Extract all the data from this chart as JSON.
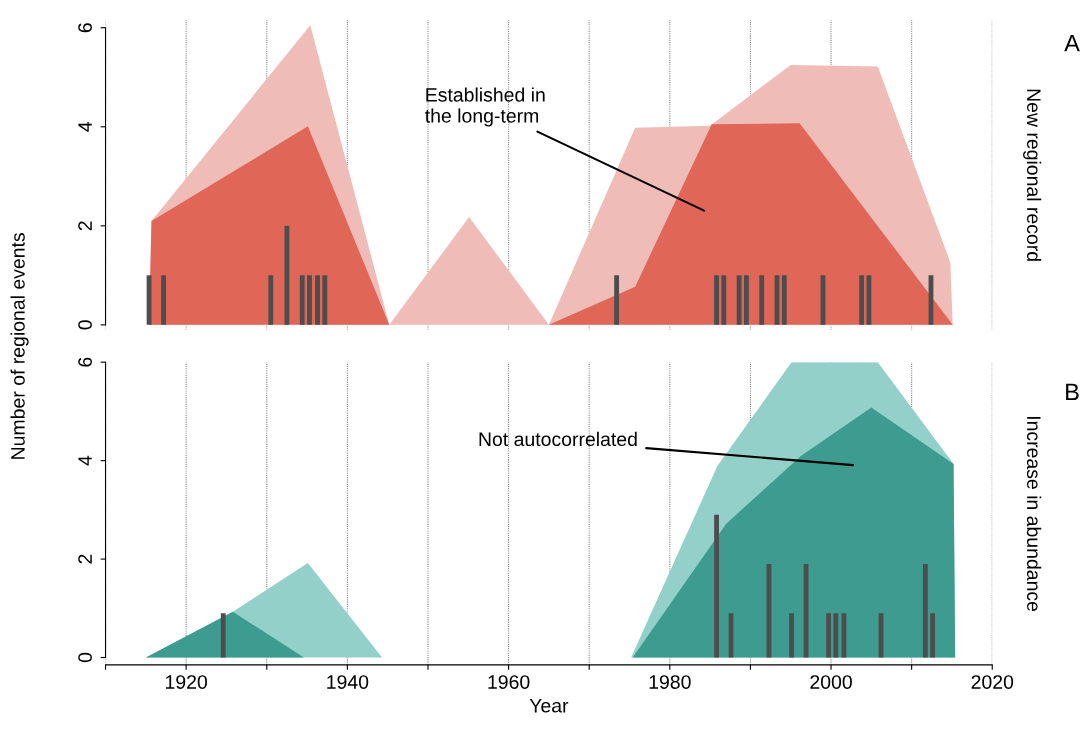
{
  "chart_data": [
    {
      "type": "area",
      "y2label": "New regional record",
      "ylabel": "Number of regional events",
      "xlim": [
        1910,
        2020
      ],
      "ylim": [
        -0.1,
        6.15
      ],
      "xticks": [
        {
          "value": 1910,
          "label": null
        },
        1920,
        {
          "value": 1930,
          "label": null
        },
        1940,
        {
          "value": 1950,
          "label": null
        },
        1960,
        {
          "value": 1970,
          "label": null
        },
        1980,
        {
          "value": 1990,
          "label": null
        },
        2000,
        {
          "value": 2010,
          "label": null
        },
        2020
      ],
      "yticks": [
        0,
        2,
        4,
        6
      ],
      "grid": "x",
      "tick_labels": "y",
      "series": [
        {
          "color": "#f0bcb8",
          "x": [
            1915.4,
            1915.7,
            1935.4,
            1945.2,
            1955.1,
            1965.0,
            1975.7,
            1985.0,
            1995.0,
            2005.8,
            2014.8,
            2015.1
          ],
          "values": [
            0,
            2.1,
            6.05,
            0,
            2.18,
            0,
            3.98,
            4.02,
            5.25,
            5.22,
            1.26,
            0
          ]
        },
        {
          "color": "#e06758",
          "x": [
            1915.4,
            1915.7,
            1935.1,
            1945.2,
            1965.0,
            1975.7,
            1985.2,
            1996.1,
            2015.1
          ],
          "values": [
            0,
            2.1,
            4.01,
            0,
            0,
            0.77,
            4.05,
            4.07,
            0
          ]
        },
        {
          "type": "bar",
          "color": "#4d4d4d",
          "x": [
            1915.4,
            1917.2,
            1930.5,
            1932.5,
            1934.4,
            1935.3,
            1936.3,
            1937.2,
            1973.4,
            1985.8,
            1986.7,
            1988.6,
            1989.5,
            1991.4,
            1993.3,
            1994.2,
            1999.0,
            2003.8,
            2004.7,
            2012.4
          ],
          "values": [
            1,
            1,
            1,
            2,
            1,
            1,
            1,
            1,
            1,
            1,
            1,
            1,
            1,
            1,
            1,
            1,
            1,
            1,
            1,
            1
          ]
        }
      ],
      "annotations": [
        "A",
        "Established in\nthe long-term"
      ]
    },
    {
      "type": "area",
      "y2label": "Increase in abundance",
      "xlabel": "Year",
      "xlim": [
        1910,
        2020
      ],
      "ylim": [
        -0.15,
        6
      ],
      "xticks": [
        {
          "value": 1910,
          "label": null
        },
        1920,
        {
          "value": 1930,
          "label": null
        },
        1940,
        {
          "value": 1950,
          "label": null
        },
        1960,
        {
          "value": 1970,
          "label": null
        },
        1980,
        {
          "value": 1990,
          "label": null
        },
        2000,
        {
          "value": 2010,
          "label": null
        },
        2020
      ],
      "yticks": [
        0,
        2,
        4,
        6
      ],
      "grid": "x",
      "series": [
        {
          "color": "#93d0c9",
          "x": [
            1910.0,
            1915.0,
            1925.8,
            1935.1,
            1944.3,
            1975.2,
            1985.9,
            1995.1,
            2005.8,
            2015.2,
            2015.4
          ],
          "values": [
            0,
            0,
            0.93,
            1.92,
            0,
            0,
            3.89,
            6,
            6,
            3.93,
            0
          ]
        },
        {
          "color": "#3d9c8f",
          "x": [
            1915.0,
            1925.8,
            1934.6,
            1975.4,
            1987.0,
            1996.3,
            2005.0,
            2015.2,
            2015.4
          ],
          "values": [
            0,
            0.93,
            0,
            0,
            2.72,
            4.1,
            5.08,
            3.93,
            0
          ]
        },
        {
          "type": "bar",
          "color": "#4d4d4d",
          "x": [
            1924.6,
            1985.8,
            1987.6,
            1992.3,
            1995.1,
            1996.9,
            1999.7,
            2000.6,
            2001.6,
            2006.2,
            2011.7,
            2012.6
          ],
          "values": [
            0.9,
            2.9,
            0.9,
            1.9,
            0.9,
            1.9,
            0.9,
            0.9,
            0.9,
            0.9,
            1.9,
            0.9
          ]
        }
      ],
      "annotations": [
        "B",
        "Not autocorrelated"
      ]
    }
  ]
}
